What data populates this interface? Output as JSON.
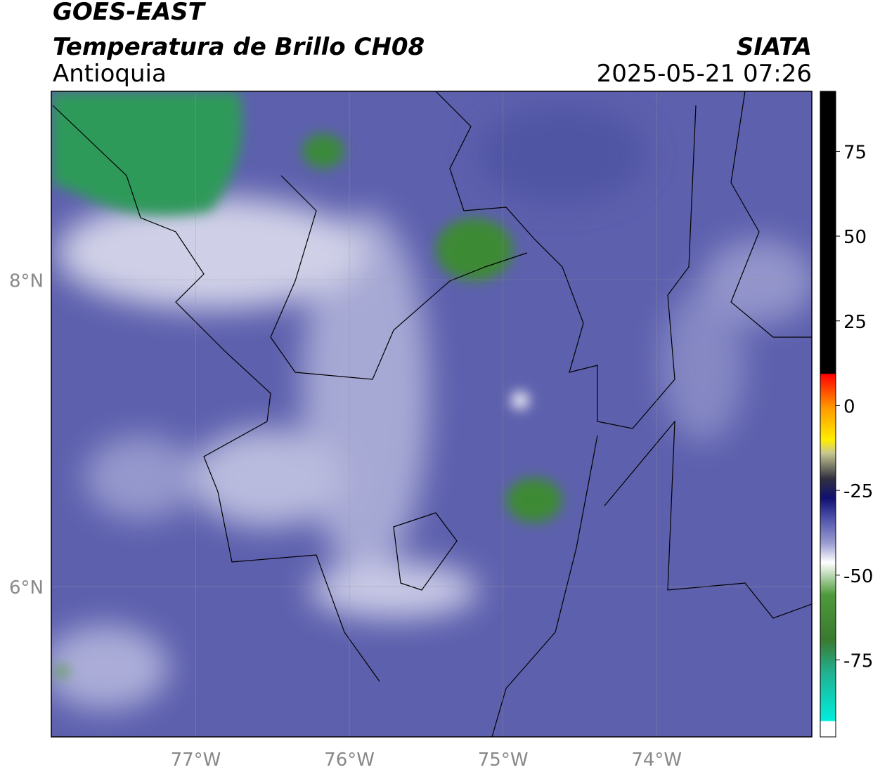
{
  "header": {
    "title": "GOES-EAST",
    "subtitle": "Temperatura de Brillo CH08",
    "region": "Antioquia",
    "source": "SIATA",
    "timestamp": "2025-05-21 07:26"
  },
  "map": {
    "xlim": [
      -77.94,
      -72.99
    ],
    "ylim": [
      5.02,
      9.23
    ],
    "xticks": [
      {
        "value": -77,
        "label": "77°W"
      },
      {
        "value": -76,
        "label": "76°W"
      },
      {
        "value": -75,
        "label": "75°W"
      },
      {
        "value": -74,
        "label": "74°W"
      }
    ],
    "yticks": [
      {
        "value": 6,
        "label": "6°N"
      },
      {
        "value": 8,
        "label": "8°N"
      }
    ]
  },
  "colorbar": {
    "lim": [
      -97.7,
      92.7
    ],
    "ticks": [
      -75,
      -50,
      -25,
      0,
      25,
      50,
      75
    ]
  }
}
